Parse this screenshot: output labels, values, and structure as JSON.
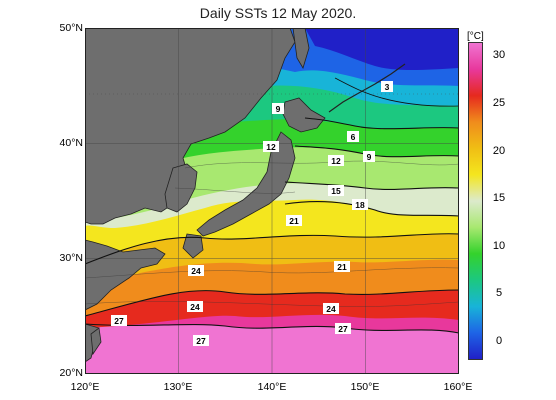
{
  "title": "Daily SSTs 12 May 2020.",
  "lat_labels": [
    "50°N",
    "40°N",
    "30°N",
    "20°N"
  ],
  "lon_labels": [
    "120°E",
    "130°E",
    "140°E",
    "150°E",
    "160°E"
  ],
  "colorbar": {
    "unit": "[°C]",
    "ticks": [
      "30",
      "25",
      "20",
      "15",
      "10",
      "5",
      "0"
    ],
    "range": [
      -2,
      31
    ],
    "colors": [
      "#2020c8",
      "#1e64e6",
      "#18b4d8",
      "#1cc880",
      "#34d22c",
      "#a8e870",
      "#dceacc",
      "#f4e61e",
      "#f0be14",
      "#f08c1c",
      "#e62a1e",
      "#e8389c",
      "#f074d2"
    ]
  },
  "contour_labels": [
    "3",
    "9",
    "6",
    "12",
    "9",
    "12",
    "15",
    "18",
    "21",
    "21",
    "24",
    "24",
    "24",
    "27",
    "27",
    "27"
  ]
}
